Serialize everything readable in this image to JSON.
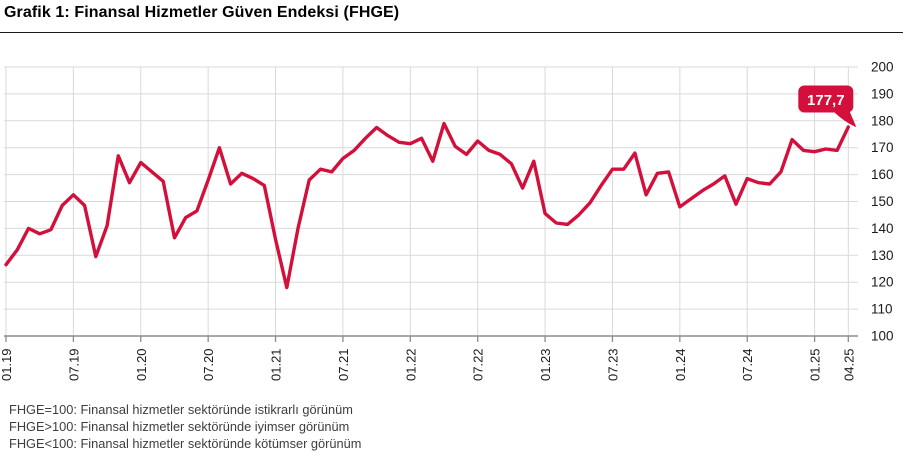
{
  "title": "Grafik 1: Finansal Hizmetler Güven Endeksi (FHGE)",
  "footnotes": [
    "FHGE=100: Finansal hizmetler sektöründe istikrarlı görünüm",
    "FHGE>100: Finansal hizmetler sektöründe iyimser görünüm",
    "FHGE<100: Finansal hizmetler sektöründe kötümser görünüm"
  ],
  "chart_data": {
    "type": "line",
    "series_name": "FHGE",
    "x_start": "01.19",
    "x_end": "04.25",
    "x_tick_labels": [
      "01.19",
      "07.19",
      "01.20",
      "07.20",
      "01.21",
      "07.21",
      "01.22",
      "07.22",
      "01.23",
      "07.23",
      "01.24",
      "07.24",
      "01.25",
      "04.25"
    ],
    "x_tick_indices": [
      0,
      6,
      12,
      18,
      24,
      30,
      36,
      42,
      48,
      54,
      60,
      66,
      72,
      75
    ],
    "y_ticks": [
      100,
      110,
      120,
      130,
      140,
      150,
      160,
      170,
      180,
      190,
      200
    ],
    "ylim": [
      100,
      200
    ],
    "grid": true,
    "legend": "none",
    "values": [
      126.5,
      132,
      140,
      138,
      139.5,
      148.5,
      152.5,
      148.5,
      129.5,
      141,
      167,
      157,
      164.5,
      161,
      157.5,
      136.5,
      144,
      146.5,
      158,
      170,
      156.5,
      160.5,
      158.5,
      156,
      136,
      118,
      140,
      158,
      162,
      161,
      166,
      169,
      173.5,
      177.5,
      174.5,
      172,
      171.5,
      173.5,
      165,
      179,
      170.5,
      167.5,
      172.5,
      169,
      167.5,
      164,
      155,
      165,
      145.5,
      142,
      141.5,
      145,
      149.5,
      156,
      162,
      162,
      168,
      152.5,
      160.5,
      161,
      148,
      151,
      154,
      156.5,
      159.5,
      149,
      158.5,
      157,
      156.5,
      161,
      173,
      169,
      168.5,
      169.5,
      169,
      177.7
    ],
    "annotation": {
      "label": "177,7",
      "value": 177.7,
      "index": 75
    },
    "line_color": "#d3103c",
    "gridline_color": "#d9d9d9",
    "axis_color": "#8c8c8c",
    "tick_label_color": "#1a1a1a"
  }
}
